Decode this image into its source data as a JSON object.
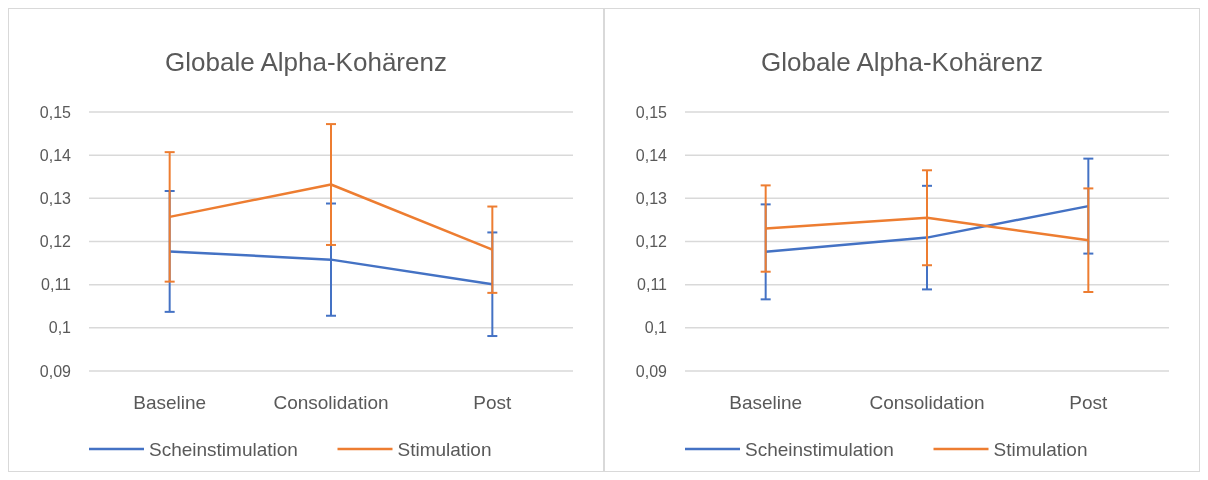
{
  "chart_data": [
    {
      "type": "line",
      "title": "Globale Alpha-Kohärenz",
      "categories": [
        "Baseline",
        "Consolidation",
        "Post"
      ],
      "ylim": [
        0.09,
        0.15
      ],
      "yticks": [
        {
          "value": 0.09,
          "label": "0,09"
        },
        {
          "value": 0.1,
          "label": "0,1"
        },
        {
          "value": 0.11,
          "label": "0,11"
        },
        {
          "value": 0.12,
          "label": "0,12"
        },
        {
          "value": 0.13,
          "label": "0,13"
        },
        {
          "value": 0.14,
          "label": "0,14"
        },
        {
          "value": 0.15,
          "label": "0,15"
        }
      ],
      "grid": "y",
      "legend": "bottom",
      "marker": "none",
      "line_style": "solid",
      "series": [
        {
          "name": "Scheinstimulation",
          "color": "#4472c4",
          "values": [
            0.1177,
            0.1158,
            0.1101
          ],
          "errors": [
            0.014,
            0.013,
            0.012
          ]
        },
        {
          "name": "Stimulation",
          "color": "#ed7d31",
          "values": [
            0.1257,
            0.1332,
            0.1181
          ],
          "errors": [
            0.015,
            0.014,
            0.01
          ]
        }
      ]
    },
    {
      "type": "line",
      "title": "Globale Alpha-Kohärenz",
      "categories": [
        "Baseline",
        "Consolidation",
        "Post"
      ],
      "ylim": [
        0.09,
        0.15
      ],
      "yticks": [
        {
          "value": 0.09,
          "label": "0,09"
        },
        {
          "value": 0.1,
          "label": "0,1"
        },
        {
          "value": 0.11,
          "label": "0,11"
        },
        {
          "value": 0.12,
          "label": "0,12"
        },
        {
          "value": 0.13,
          "label": "0,13"
        },
        {
          "value": 0.14,
          "label": "0,14"
        },
        {
          "value": 0.15,
          "label": "0,15"
        }
      ],
      "grid": "y",
      "legend": "bottom",
      "marker": "none",
      "line_style": "solid",
      "series": [
        {
          "name": "Scheinstimulation",
          "color": "#4472c4",
          "values": [
            0.1176,
            0.1209,
            0.1282
          ],
          "errors": [
            0.011,
            0.012,
            0.011
          ]
        },
        {
          "name": "Stimulation",
          "color": "#ed7d31",
          "values": [
            0.123,
            0.1255,
            0.1203
          ],
          "errors": [
            0.01,
            0.011,
            0.012
          ]
        }
      ]
    }
  ]
}
